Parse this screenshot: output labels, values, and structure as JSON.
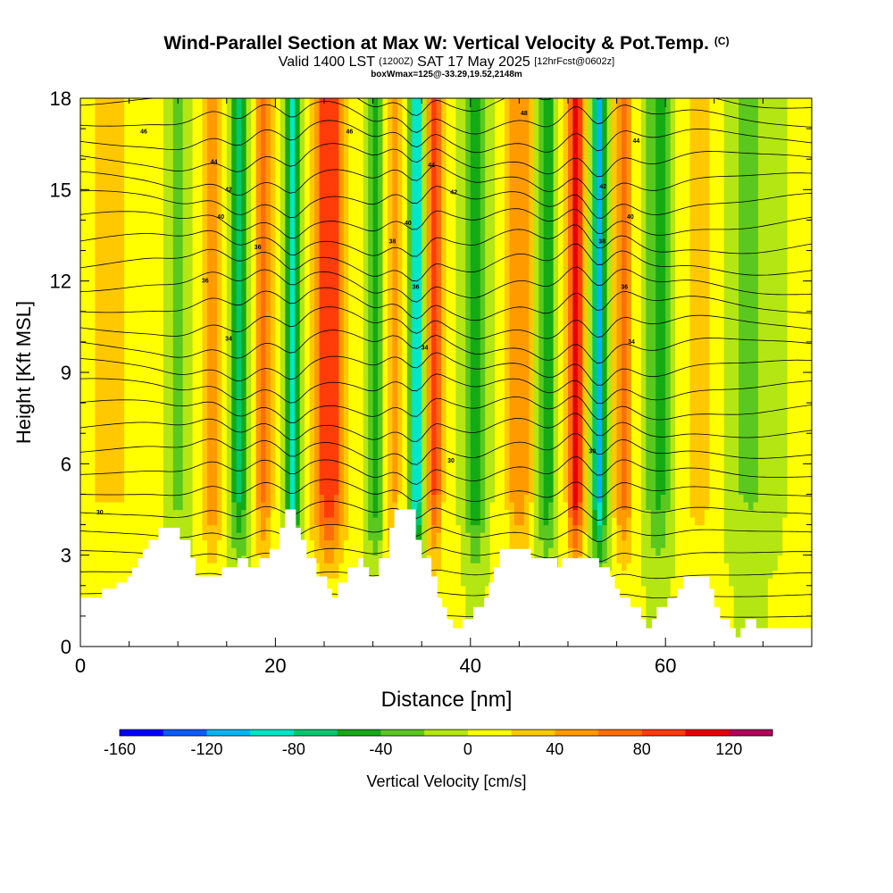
{
  "title": {
    "main": "Wind-Parallel Section at Max W: Vertical Velocity & Pot.Temp.",
    "main_unit": "(C)",
    "valid_prefix": "Valid 1400 LST",
    "valid_zulu": "(1200Z)",
    "valid_date": "SAT 17 May 2025",
    "forecast": "[12hrFcst@0602z]",
    "box_info": "boxWmax=125@-33.29,19.52,2148m"
  },
  "chart_data": {
    "type": "heatmap",
    "xlabel": "Distance [nm]",
    "ylabel": "Height [Kft MSL]",
    "xlim": [
      0,
      75
    ],
    "ylim": [
      0,
      18
    ],
    "x_ticks": [
      0,
      20,
      40,
      60
    ],
    "y_ticks": [
      0,
      3,
      6,
      9,
      12,
      15,
      18
    ],
    "colorbar": {
      "label": "Vertical Velocity [cm/s]",
      "ticks": [
        "-160",
        "-120",
        "-80",
        "-40",
        "0",
        "40",
        "80",
        "120"
      ],
      "bounds": [
        -160,
        140
      ],
      "step": 20,
      "colors": [
        "#0000ff",
        "#0a5ef5",
        "#00b4f5",
        "#00e6c8",
        "#00c86e",
        "#14aa14",
        "#5ac81e",
        "#b4e614",
        "#ffff00",
        "#ffc800",
        "#ff9a00",
        "#ff6e0a",
        "#ff3c0a",
        "#e60000",
        "#b4005a"
      ]
    },
    "vertical_velocity_columns": [
      {
        "x": 3,
        "w": 5,
        "amp": 20
      },
      {
        "x": 10,
        "w": 1.2,
        "amp": -30
      },
      {
        "x": 13.5,
        "w": 1.0,
        "amp": 55
      },
      {
        "x": 16.3,
        "w": 0.9,
        "amp": -65
      },
      {
        "x": 18.8,
        "w": 0.9,
        "amp": 65
      },
      {
        "x": 21.8,
        "w": 0.7,
        "amp": -95
      },
      {
        "x": 25.5,
        "w": 1.6,
        "amp": 100
      },
      {
        "x": 30.3,
        "w": 0.9,
        "amp": -55
      },
      {
        "x": 32.0,
        "w": 0.8,
        "amp": 45
      },
      {
        "x": 34.5,
        "w": 0.7,
        "amp": -105
      },
      {
        "x": 36.3,
        "w": 0.8,
        "amp": 80
      },
      {
        "x": 40.5,
        "w": 1.0,
        "amp": -60
      },
      {
        "x": 45.0,
        "w": 1.3,
        "amp": 55
      },
      {
        "x": 47.8,
        "w": 0.9,
        "amp": -60
      },
      {
        "x": 50.8,
        "w": 0.8,
        "amp": 115
      },
      {
        "x": 53.2,
        "w": 0.7,
        "amp": -110
      },
      {
        "x": 55.7,
        "w": 0.9,
        "amp": 70
      },
      {
        "x": 59.3,
        "w": 1.3,
        "amp": -50
      },
      {
        "x": 63.5,
        "w": 2.2,
        "amp": 25
      },
      {
        "x": 68.5,
        "w": 2.5,
        "amp": -25
      }
    ],
    "terrain": [
      [
        0,
        1.6
      ],
      [
        2.2,
        1.6
      ],
      [
        2.2,
        1.9
      ],
      [
        3.7,
        1.9
      ],
      [
        3.7,
        2.1
      ],
      [
        4.8,
        2.1
      ],
      [
        4.8,
        2.3
      ],
      [
        5.3,
        2.3
      ],
      [
        5.3,
        2.6
      ],
      [
        5.9,
        2.6
      ],
      [
        5.9,
        2.9
      ],
      [
        6.4,
        2.9
      ],
      [
        6.4,
        3.2
      ],
      [
        7.0,
        3.2
      ],
      [
        7.0,
        3.5
      ],
      [
        8.0,
        3.5
      ],
      [
        8.0,
        3.9
      ],
      [
        10.2,
        3.9
      ],
      [
        10.2,
        3.5
      ],
      [
        11.3,
        3.5
      ],
      [
        11.3,
        2.9
      ],
      [
        11.8,
        2.9
      ],
      [
        11.8,
        2.3
      ],
      [
        14.5,
        2.3
      ],
      [
        14.5,
        2.6
      ],
      [
        16.1,
        2.6
      ],
      [
        16.1,
        2.9
      ],
      [
        17.2,
        2.9
      ],
      [
        17.2,
        2.6
      ],
      [
        18.3,
        2.6
      ],
      [
        18.3,
        2.9
      ],
      [
        19.4,
        2.9
      ],
      [
        19.4,
        3.2
      ],
      [
        20.4,
        3.2
      ],
      [
        20.4,
        3.9
      ],
      [
        21.0,
        3.9
      ],
      [
        21.0,
        4.5
      ],
      [
        22.1,
        4.5
      ],
      [
        22.1,
        3.9
      ],
      [
        22.6,
        3.9
      ],
      [
        22.6,
        3.5
      ],
      [
        23.2,
        3.5
      ],
      [
        23.2,
        2.9
      ],
      [
        24.2,
        2.9
      ],
      [
        24.2,
        2.3
      ],
      [
        25.3,
        2.3
      ],
      [
        25.3,
        1.9
      ],
      [
        25.8,
        1.9
      ],
      [
        25.8,
        1.6
      ],
      [
        26.4,
        1.6
      ],
      [
        26.4,
        2.1
      ],
      [
        27.4,
        2.1
      ],
      [
        27.4,
        2.6
      ],
      [
        28.5,
        2.6
      ],
      [
        28.5,
        2.9
      ],
      [
        29.0,
        2.9
      ],
      [
        29.0,
        2.6
      ],
      [
        29.6,
        2.6
      ],
      [
        29.6,
        2.3
      ],
      [
        30.6,
        2.3
      ],
      [
        30.6,
        2.9
      ],
      [
        31.7,
        2.9
      ],
      [
        31.7,
        3.9
      ],
      [
        32.2,
        3.9
      ],
      [
        32.2,
        4.5
      ],
      [
        34.4,
        4.5
      ],
      [
        34.4,
        3.5
      ],
      [
        35.0,
        3.5
      ],
      [
        35.0,
        2.9
      ],
      [
        36.0,
        2.9
      ],
      [
        36.0,
        2.3
      ],
      [
        36.6,
        2.3
      ],
      [
        36.6,
        1.6
      ],
      [
        37.1,
        1.6
      ],
      [
        37.1,
        1.3
      ],
      [
        37.6,
        1.3
      ],
      [
        37.6,
        0.9
      ],
      [
        38.2,
        0.9
      ],
      [
        38.2,
        0.6
      ],
      [
        39.2,
        0.6
      ],
      [
        39.2,
        0.9
      ],
      [
        40.3,
        0.9
      ],
      [
        40.3,
        1.3
      ],
      [
        41.4,
        1.3
      ],
      [
        41.4,
        1.6
      ],
      [
        41.9,
        1.6
      ],
      [
        41.9,
        2.1
      ],
      [
        42.4,
        2.1
      ],
      [
        42.4,
        2.6
      ],
      [
        43.0,
        2.6
      ],
      [
        43.0,
        3.2
      ],
      [
        46.2,
        3.2
      ],
      [
        46.2,
        2.9
      ],
      [
        48.9,
        2.9
      ],
      [
        48.9,
        2.6
      ],
      [
        49.4,
        2.6
      ],
      [
        49.4,
        2.9
      ],
      [
        53.2,
        2.9
      ],
      [
        53.2,
        2.6
      ],
      [
        54.3,
        2.6
      ],
      [
        54.3,
        2.3
      ],
      [
        54.8,
        2.3
      ],
      [
        54.8,
        1.9
      ],
      [
        55.3,
        1.9
      ],
      [
        55.3,
        1.6
      ],
      [
        56.4,
        1.6
      ],
      [
        56.4,
        1.3
      ],
      [
        57.5,
        1.3
      ],
      [
        57.5,
        0.9
      ],
      [
        58.0,
        0.9
      ],
      [
        58.0,
        0.6
      ],
      [
        58.6,
        0.6
      ],
      [
        58.6,
        0.9
      ],
      [
        59.1,
        0.9
      ],
      [
        59.1,
        1.3
      ],
      [
        60.2,
        1.3
      ],
      [
        60.2,
        1.6
      ],
      [
        61.2,
        1.6
      ],
      [
        61.2,
        1.9
      ],
      [
        61.8,
        1.9
      ],
      [
        61.8,
        2.3
      ],
      [
        64.5,
        2.3
      ],
      [
        64.5,
        1.9
      ],
      [
        65.0,
        1.9
      ],
      [
        65.0,
        1.3
      ],
      [
        65.6,
        1.3
      ],
      [
        65.6,
        0.9
      ],
      [
        66.6,
        0.9
      ],
      [
        66.6,
        0.6
      ],
      [
        67.2,
        0.6
      ],
      [
        67.2,
        0.3
      ],
      [
        67.7,
        0.3
      ],
      [
        67.7,
        0.6
      ],
      [
        68.2,
        0.6
      ],
      [
        68.2,
        0.9
      ],
      [
        69.3,
        0.9
      ],
      [
        69.3,
        0.6
      ],
      [
        75,
        0.6
      ]
    ],
    "theta_contour_labels": [
      {
        "text": "46",
        "x": 6.5,
        "y": 16.9
      },
      {
        "text": "46",
        "x": 27.6,
        "y": 16.9
      },
      {
        "text": "48",
        "x": 45.5,
        "y": 17.5
      },
      {
        "text": "44",
        "x": 13.7,
        "y": 15.9
      },
      {
        "text": "44",
        "x": 36.0,
        "y": 15.8
      },
      {
        "text": "44",
        "x": 57.0,
        "y": 16.6
      },
      {
        "text": "42",
        "x": 15.2,
        "y": 15.0
      },
      {
        "text": "42",
        "x": 38.3,
        "y": 14.9
      },
      {
        "text": "42",
        "x": 53.6,
        "y": 15.1
      },
      {
        "text": "40",
        "x": 14.4,
        "y": 14.1
      },
      {
        "text": "40",
        "x": 33.6,
        "y": 13.9
      },
      {
        "text": "40",
        "x": 56.4,
        "y": 14.1
      },
      {
        "text": "38",
        "x": 32.0,
        "y": 13.3
      },
      {
        "text": "38",
        "x": 53.5,
        "y": 13.3
      },
      {
        "text": "36",
        "x": 18.2,
        "y": 13.1
      },
      {
        "text": "36",
        "x": 12.8,
        "y": 12.0
      },
      {
        "text": "36",
        "x": 34.4,
        "y": 11.8
      },
      {
        "text": "36",
        "x": 55.8,
        "y": 11.8
      },
      {
        "text": "34",
        "x": 15.2,
        "y": 10.1
      },
      {
        "text": "34",
        "x": 35.3,
        "y": 9.8
      },
      {
        "text": "34",
        "x": 56.5,
        "y": 10.0
      },
      {
        "text": "30",
        "x": 38.0,
        "y": 6.1
      },
      {
        "text": "30",
        "x": 52.5,
        "y": 6.4
      },
      {
        "text": "30",
        "x": 2.0,
        "y": 4.4
      }
    ]
  }
}
